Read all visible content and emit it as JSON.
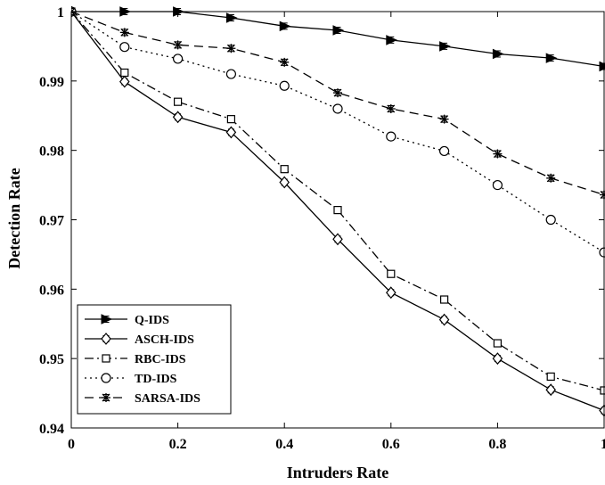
{
  "chart_data": {
    "type": "line",
    "xlabel": "Intruders Rate",
    "ylabel": "Detection Rate",
    "xlim": [
      0,
      1
    ],
    "ylim": [
      0.94,
      1
    ],
    "x_ticks": [
      "0",
      "0.2",
      "0.4",
      "0.6",
      "0.8",
      "1"
    ],
    "y_ticks": [
      "0.94",
      "0.95",
      "0.96",
      "0.97",
      "0.98",
      "0.99",
      "1"
    ],
    "grid": false,
    "legend_position": "bottom-left",
    "x": [
      0,
      0.1,
      0.2,
      0.3,
      0.4,
      0.5,
      0.6,
      0.7,
      0.8,
      0.9,
      1.0
    ],
    "series": [
      {
        "name": "Q-IDS",
        "marker": "triangle-right",
        "dash": "solid",
        "values": [
          1.0,
          1.0,
          1.0,
          0.9991,
          0.9979,
          0.9973,
          0.9959,
          0.995,
          0.9939,
          0.9933,
          0.9921
        ]
      },
      {
        "name": "ASCH-IDS",
        "marker": "diamond",
        "dash": "solid",
        "values": [
          1.0,
          0.9899,
          0.9848,
          0.9826,
          0.9754,
          0.9672,
          0.9595,
          0.9556,
          0.95,
          0.9455,
          0.9425
        ]
      },
      {
        "name": "RBC-IDS",
        "marker": "square",
        "dash": "dashdot",
        "values": [
          1.0,
          0.9912,
          0.987,
          0.9845,
          0.9773,
          0.9714,
          0.9622,
          0.9585,
          0.9522,
          0.9474,
          0.9454
        ]
      },
      {
        "name": "TD-IDS",
        "marker": "circle",
        "dash": "dotted",
        "values": [
          1.0,
          0.9949,
          0.9932,
          0.991,
          0.9893,
          0.986,
          0.982,
          0.9799,
          0.975,
          0.97,
          0.9653
        ]
      },
      {
        "name": "SARSA-IDS",
        "marker": "asterisk",
        "dash": "dashed",
        "values": [
          1.0,
          0.997,
          0.9952,
          0.9947,
          0.9927,
          0.9883,
          0.986,
          0.9845,
          0.9795,
          0.976,
          0.9736
        ]
      }
    ]
  }
}
